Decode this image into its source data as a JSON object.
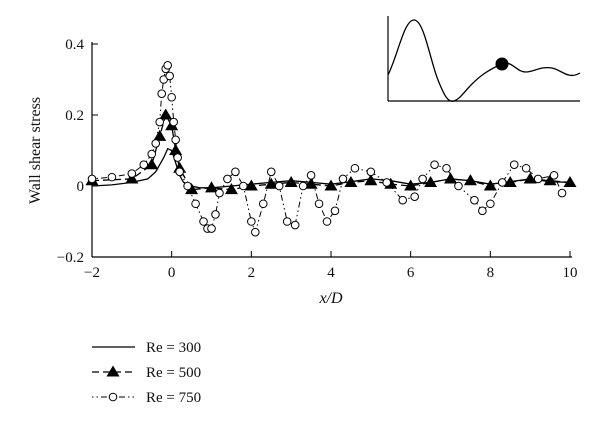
{
  "chart_data": {
    "type": "line",
    "xlabel": "x/D",
    "ylabel": "Wall shear stress",
    "xlim": [
      -2,
      10
    ],
    "ylim": [
      -0.2,
      0.4
    ],
    "xticks": [
      -2,
      0,
      2,
      4,
      6,
      8,
      10
    ],
    "yticks": [
      -0.2,
      0,
      0.2,
      0.4
    ],
    "xtick_labels": [
      "−2",
      "0",
      "2",
      "4",
      "6",
      "8",
      "10"
    ],
    "ytick_labels": [
      "−0.2",
      "0",
      "0.2",
      "0.4"
    ],
    "grid": false,
    "legend_position": "bottom-left",
    "series": [
      {
        "name": "Re = 300",
        "style": "solid",
        "marker": "none",
        "x": [
          -2,
          -1.5,
          -1,
          -0.6,
          -0.4,
          -0.2,
          -0.1,
          0,
          0.1,
          0.2,
          0.3,
          0.5,
          0.7,
          1.0,
          1.5,
          2.0,
          2.5,
          3.0,
          3.5,
          4.0,
          4.5,
          5.0,
          5.5,
          6.0,
          6.5,
          7.0,
          7.5,
          8.0,
          8.5,
          9.0,
          9.5,
          10
        ],
        "y": [
          0.0,
          0.003,
          0.01,
          0.02,
          0.04,
          0.08,
          0.105,
          0.1,
          0.065,
          0.03,
          0.01,
          0.0,
          -0.005,
          -0.005,
          0.0,
          0.005,
          0.01,
          0.015,
          0.01,
          0.005,
          0.012,
          0.02,
          0.015,
          0.005,
          0.01,
          0.02,
          0.015,
          0.005,
          0.012,
          0.02,
          0.012,
          0.01
        ]
      },
      {
        "name": "Re = 500",
        "style": "dashed",
        "marker": "triangle",
        "x": [
          -2,
          -1,
          -0.5,
          -0.3,
          -0.15,
          0,
          0.1,
          0.2,
          0.5,
          1.0,
          1.5,
          2.0,
          2.5,
          3.0,
          3.5,
          4.0,
          4.5,
          5.0,
          5.5,
          6.0,
          6.5,
          7.0,
          7.5,
          8.0,
          8.5,
          9.0,
          9.5,
          10
        ],
        "y": [
          0.015,
          0.02,
          0.06,
          0.14,
          0.2,
          0.17,
          0.1,
          0.05,
          -0.01,
          -0.005,
          -0.01,
          0.0,
          0.005,
          0.01,
          0.005,
          0.0,
          0.01,
          0.015,
          0.005,
          0.0,
          0.01,
          0.02,
          0.015,
          0.0,
          0.01,
          0.02,
          0.015,
          0.01
        ]
      },
      {
        "name": "Re = 750",
        "style": "dash-dot",
        "marker": "circle-open",
        "x": [
          -2,
          -1.5,
          -1,
          -0.7,
          -0.5,
          -0.4,
          -0.3,
          -0.25,
          -0.2,
          -0.15,
          -0.1,
          -0.05,
          0,
          0.05,
          0.1,
          0.15,
          0.2,
          0.4,
          0.6,
          0.8,
          0.9,
          1.0,
          1.1,
          1.2,
          1.4,
          1.6,
          1.8,
          2.0,
          2.1,
          2.3,
          2.5,
          2.7,
          2.9,
          3.1,
          3.3,
          3.5,
          3.7,
          3.9,
          4.1,
          4.3,
          4.6,
          5.0,
          5.4,
          5.8,
          6.1,
          6.3,
          6.6,
          6.9,
          7.2,
          7.6,
          7.8,
          8.0,
          8.3,
          8.6,
          8.9,
          9.2,
          9.6,
          9.8
        ],
        "y": [
          0.02,
          0.025,
          0.035,
          0.06,
          0.09,
          0.12,
          0.18,
          0.26,
          0.3,
          0.33,
          0.34,
          0.31,
          0.25,
          0.18,
          0.13,
          0.08,
          0.04,
          0.0,
          -0.05,
          -0.1,
          -0.12,
          -0.12,
          -0.08,
          -0.02,
          0.02,
          0.04,
          0.0,
          -0.1,
          -0.13,
          -0.05,
          0.04,
          0.0,
          -0.1,
          -0.11,
          0.0,
          0.03,
          -0.05,
          -0.1,
          -0.07,
          0.02,
          0.05,
          0.04,
          0.01,
          -0.04,
          -0.03,
          0.02,
          0.06,
          0.05,
          0.0,
          -0.04,
          -0.07,
          -0.05,
          0.01,
          0.06,
          0.05,
          0.02,
          0.03,
          -0.02
        ]
      }
    ]
  }
}
